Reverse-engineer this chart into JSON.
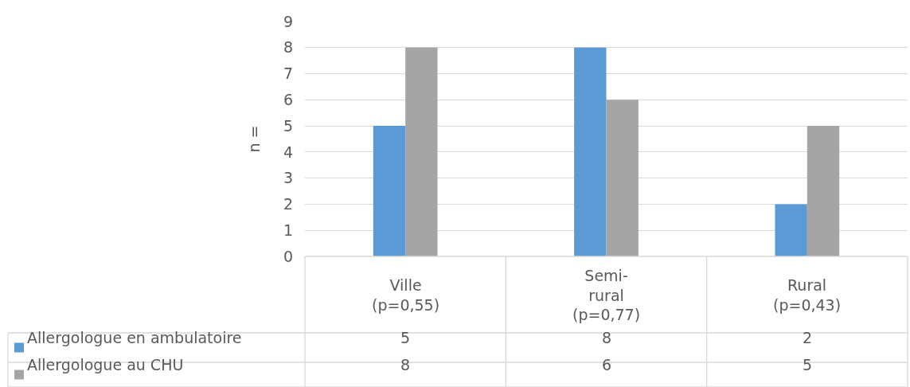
{
  "chart_data": {
    "type": "bar",
    "ylabel": "n =",
    "categories": [
      "Ville\n(p=0,55)",
      "Semi-\nrural\n(p=0,77)",
      "Rural\n(p=0,43)"
    ],
    "series": [
      {
        "name": "Allergologue en ambulatoire",
        "color": "#5b9bd5",
        "values": [
          5,
          8,
          2
        ]
      },
      {
        "name": "Allergologue au CHU",
        "color": "#a5a5a5",
        "values": [
          8,
          6,
          5
        ]
      }
    ],
    "ylim": [
      0,
      9
    ],
    "yticks": [
      0,
      1,
      2,
      3,
      4,
      5,
      6,
      7,
      8,
      9
    ],
    "grid": "y",
    "legend": "bottom left",
    "data_labels": true
  }
}
